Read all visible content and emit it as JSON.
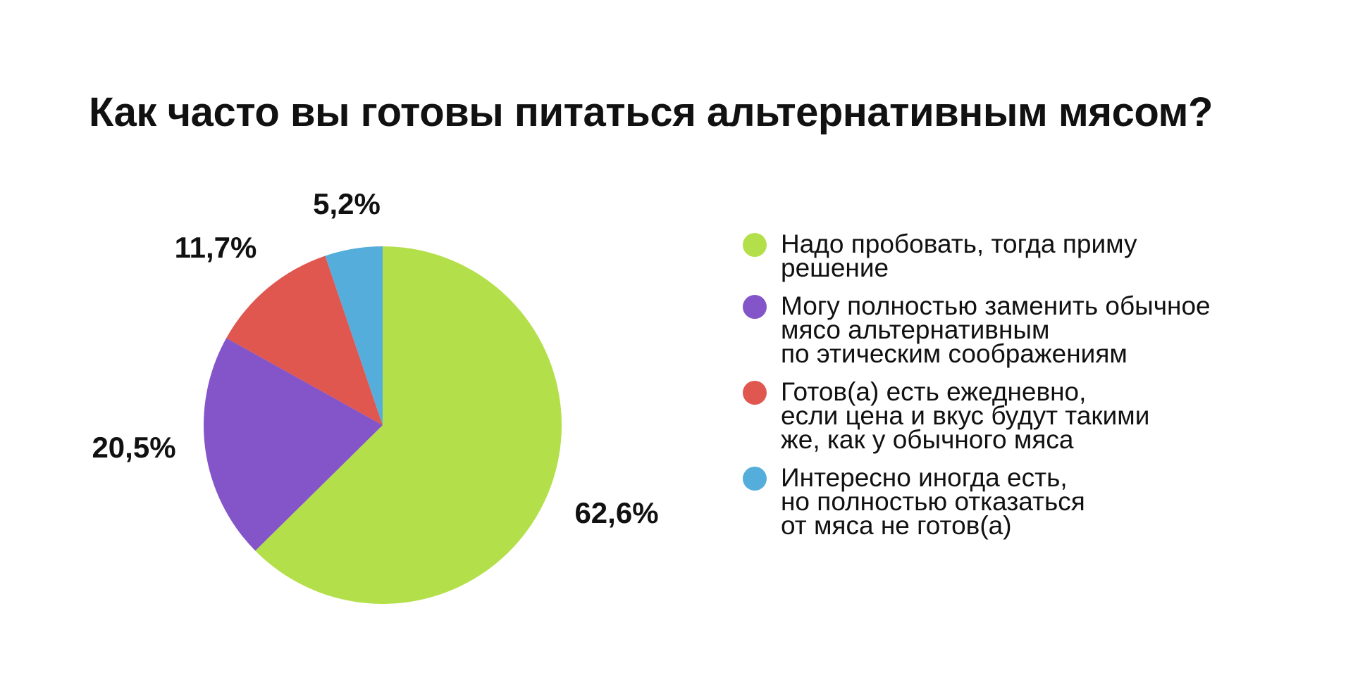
{
  "chart_data": {
    "type": "pie",
    "title": "Как часто вы готовы питаться альтернативным мясом?",
    "slices": [
      {
        "label": "Надо пробовать, тогда приму\nрешение",
        "value": 62.6,
        "value_label": "62,6%",
        "color": "#b3e04a"
      },
      {
        "label": "Могу полностью заменить обычное\nмясо альтернативным\nпо этическим соображениям",
        "value": 20.5,
        "value_label": "20,5%",
        "color": "#8454c9"
      },
      {
        "label": "Готов(а) есть ежедневно,\nесли цена и вкус будут такими\nже, как у обычного мяса",
        "value": 11.7,
        "value_label": "11,7%",
        "color": "#e0574f"
      },
      {
        "label": "Интересно иногда есть,\nно полностью отказаться\nот мяса не готов(а)",
        "value": 5.2,
        "value_label": "5,2%",
        "color": "#55addb"
      }
    ],
    "start_angle": "12 o'clock",
    "direction": "clockwise",
    "legend_position": "right"
  }
}
